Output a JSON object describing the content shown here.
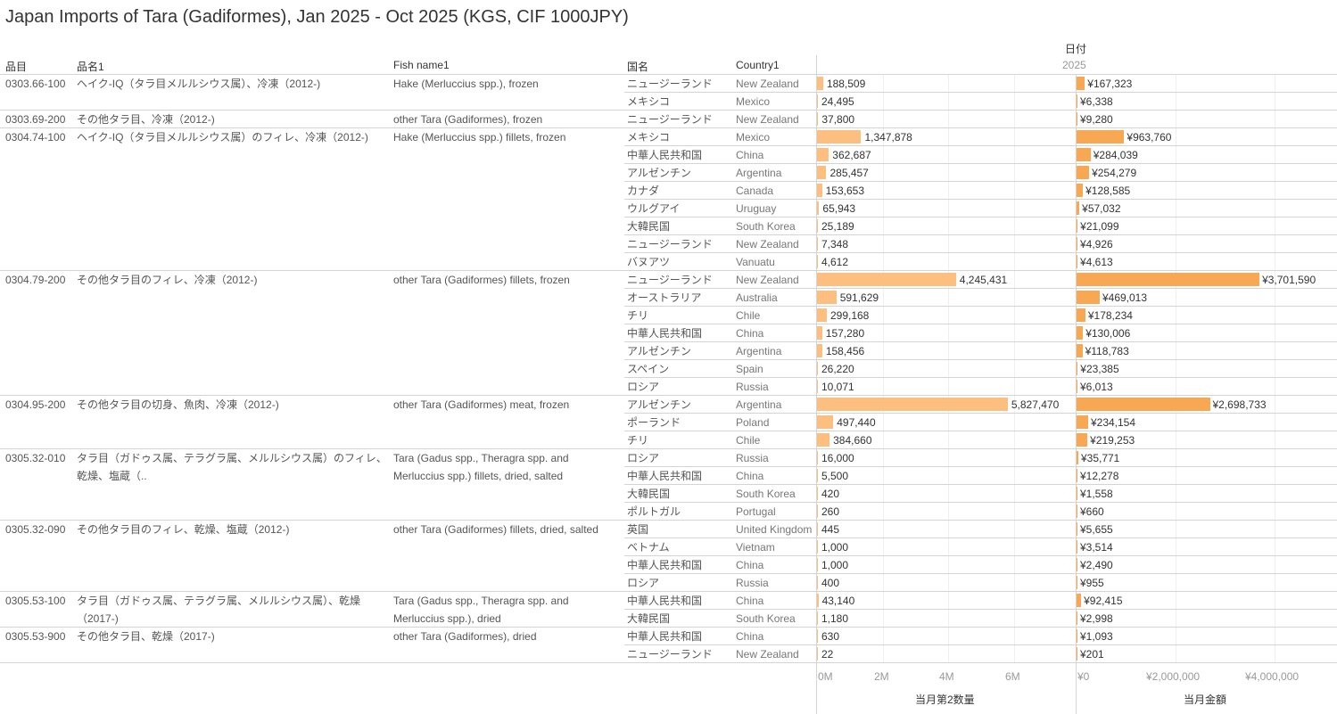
{
  "title": "Japan Imports of Tara (Gadiformes), Jan 2025 - Oct 2025 (KGS, CIF 1000JPY)",
  "headers": {
    "item": "品目",
    "name": "品名1",
    "fish": "Fish name1",
    "country_jp": "国名",
    "country_en": "Country1",
    "date": "日付",
    "year": "2025"
  },
  "axes": {
    "qty_ticks": [
      "0M",
      "2M",
      "4M",
      "6M"
    ],
    "qty_title": "当月第2数量",
    "amt_ticks": [
      "¥0",
      "¥2,000,000",
      "¥4,000,000"
    ],
    "amt_title": "当月金額"
  },
  "colors": {
    "qty": "#fdbf80",
    "amt": "#f8a752"
  },
  "groups": [
    {
      "code": "0303.66-100",
      "name": "ヘイク-IQ（タラ目メルルシウス属）、冷凍（2012-)",
      "fish": [
        "Hake (Merluccius spp.), frozen"
      ],
      "rows": [
        [
          "ニュージーランド",
          "New Zealand",
          "188,509",
          "¥167,323"
        ],
        [
          "メキシコ",
          "Mexico",
          "24,495",
          "¥6,338"
        ]
      ]
    },
    {
      "code": "0303.69-200",
      "name": "その他タラ目、冷凍（2012-)",
      "fish": [
        "other Tara (Gadiformes), frozen"
      ],
      "rows": [
        [
          "ニュージーランド",
          "New Zealand",
          "37,800",
          "¥9,280"
        ]
      ]
    },
    {
      "code": "0304.74-100",
      "name": "ヘイク-IQ（タラ目メルルシウス属）のフィレ、冷凍（2012-)",
      "fish": [
        "Hake (Merluccius spp.) fillets, frozen"
      ],
      "rows": [
        [
          "メキシコ",
          "Mexico",
          "1,347,878",
          "¥963,760"
        ],
        [
          "中華人民共和国",
          "China",
          "362,687",
          "¥284,039"
        ],
        [
          "アルゼンチン",
          "Argentina",
          "285,457",
          "¥254,279"
        ],
        [
          "カナダ",
          "Canada",
          "153,653",
          "¥128,585"
        ],
        [
          "ウルグアイ",
          "Uruguay",
          "65,943",
          "¥57,032"
        ],
        [
          "大韓民国",
          "South Korea",
          "25,189",
          "¥21,099"
        ],
        [
          "ニュージーランド",
          "New Zealand",
          "7,348",
          "¥4,926"
        ],
        [
          "バヌアツ",
          "Vanuatu",
          "4,612",
          "¥4,613"
        ]
      ]
    },
    {
      "code": "0304.79-200",
      "name": "その他タラ目のフィレ、冷凍（2012-)",
      "fish": [
        "other Tara (Gadiformes) fillets, frozen"
      ],
      "rows": [
        [
          "ニュージーランド",
          "New Zealand",
          "4,245,431",
          "¥3,701,590"
        ],
        [
          "オーストラリア",
          "Australia",
          "591,629",
          "¥469,013"
        ],
        [
          "チリ",
          "Chile",
          "299,168",
          "¥178,234"
        ],
        [
          "中華人民共和国",
          "China",
          "157,280",
          "¥130,006"
        ],
        [
          "アルゼンチン",
          "Argentina",
          "158,456",
          "¥118,783"
        ],
        [
          "スペイン",
          "Spain",
          "26,220",
          "¥23,385"
        ],
        [
          "ロシア",
          "Russia",
          "10,071",
          "¥6,013"
        ]
      ]
    },
    {
      "code": "0304.95-200",
      "name": "その他タラ目の切身、魚肉、冷凍（2012-)",
      "fish": [
        "other Tara (Gadiformes) meat, frozen"
      ],
      "rows": [
        [
          "アルゼンチン",
          "Argentina",
          "5,827,470",
          "¥2,698,733"
        ],
        [
          "ポーランド",
          "Poland",
          "497,440",
          "¥234,154"
        ],
        [
          "チリ",
          "Chile",
          "384,660",
          "¥219,253"
        ]
      ]
    },
    {
      "code": "0305.32-010",
      "name": "タラ目（ガドゥス属、テラグラ属、メルルシウス属）のフィレ、乾燥、塩蔵（..",
      "fish": [
        "Tara (Gadus spp., Theragra spp. and",
        "Merluccius spp.) fillets, dried, salted"
      ],
      "rows": [
        [
          "ロシア",
          "Russia",
          "16,000",
          "¥35,771"
        ],
        [
          "中華人民共和国",
          "China",
          "5,500",
          "¥12,278"
        ],
        [
          "大韓民国",
          "South Korea",
          "420",
          "¥1,558"
        ],
        [
          "ポルトガル",
          "Portugal",
          "260",
          "¥660"
        ]
      ]
    },
    {
      "code": "0305.32-090",
      "name": "その他タラ目のフィレ、乾燥、塩蔵（2012-)",
      "fish": [
        "other Tara (Gadiformes) fillets, dried, salted"
      ],
      "rows": [
        [
          "英国",
          "United Kingdom",
          "445",
          "¥5,655"
        ],
        [
          "ベトナム",
          "Vietnam",
          "1,000",
          "¥3,514"
        ],
        [
          "中華人民共和国",
          "China",
          "1,000",
          "¥2,490"
        ],
        [
          "ロシア",
          "Russia",
          "400",
          "¥955"
        ]
      ]
    },
    {
      "code": "0305.53-100",
      "name": "タラ目（ガドゥス属、テラグラ属、メルルシウス属）、乾燥（2017-)",
      "fish": [
        "Tara (Gadus spp., Theragra spp. and",
        "Merluccius spp.), dried"
      ],
      "rows": [
        [
          "中華人民共和国",
          "China",
          "43,140",
          "¥92,415"
        ],
        [
          "大韓民国",
          "South Korea",
          "1,180",
          "¥2,998"
        ]
      ]
    },
    {
      "code": "0305.53-900",
      "name": "その他タラ目、乾燥（2017-)",
      "fish": [
        "other Tara (Gadiformes), dried"
      ],
      "rows": [
        [
          "中華人民共和国",
          "China",
          "630",
          "¥1,093"
        ],
        [
          "ニュージーランド",
          "New Zealand",
          "22",
          "¥201"
        ]
      ]
    }
  ]
}
